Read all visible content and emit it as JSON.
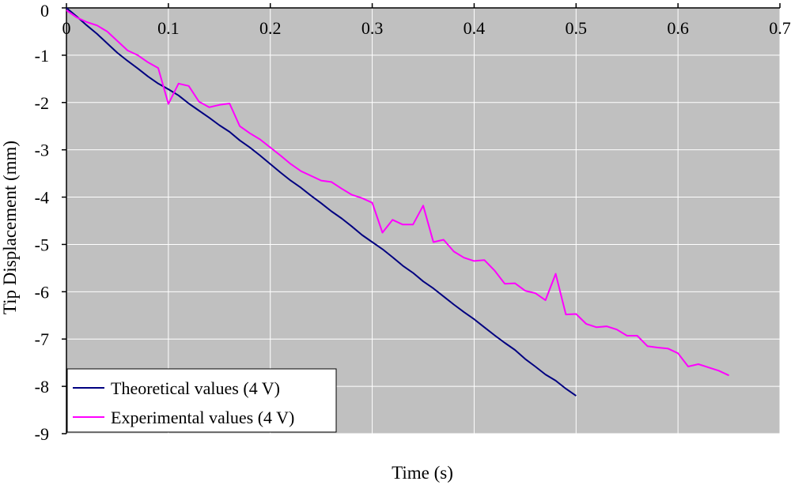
{
  "chart_data": {
    "type": "line",
    "title": "",
    "xlabel": "Time (s)",
    "ylabel": "Tip Displacement (mm)",
    "xlim": [
      0,
      0.7
    ],
    "ylim": [
      -9,
      0
    ],
    "x_ticks": [
      0,
      0.1,
      0.2,
      0.3,
      0.4,
      0.5,
      0.6,
      0.7
    ],
    "x_tick_labels": [
      "0",
      "0.1",
      "0.2",
      "0.3",
      "0.4",
      "0.5",
      "0.6",
      "0.7"
    ],
    "y_ticks": [
      0,
      -1,
      -2,
      -3,
      -4,
      -5,
      -6,
      -7,
      -8,
      -9
    ],
    "y_tick_labels": [
      "0",
      "-1",
      "-2",
      "-3",
      "-4",
      "-5",
      "-6",
      "-7",
      "-8",
      "-9"
    ],
    "grid": true,
    "legend_position": "bottom-left",
    "colors": {
      "plot_background": "#c0c0c0",
      "grid": "#ffffff",
      "axis": "#000000"
    },
    "series": [
      {
        "name": "Theoretical values (4 V)",
        "color": "#000080",
        "x": [
          0,
          0.01,
          0.02,
          0.03,
          0.04,
          0.05,
          0.06,
          0.07,
          0.08,
          0.09,
          0.1,
          0.11,
          0.12,
          0.13,
          0.14,
          0.15,
          0.16,
          0.17,
          0.18,
          0.19,
          0.2,
          0.21,
          0.22,
          0.23,
          0.24,
          0.25,
          0.26,
          0.27,
          0.28,
          0.29,
          0.3,
          0.31,
          0.32,
          0.33,
          0.34,
          0.35,
          0.36,
          0.37,
          0.38,
          0.39,
          0.4,
          0.41,
          0.42,
          0.43,
          0.44,
          0.45,
          0.46,
          0.47,
          0.48,
          0.49,
          0.5
        ],
        "y": [
          0,
          -0.18,
          -0.37,
          -0.55,
          -0.75,
          -0.95,
          -1.12,
          -1.28,
          -1.45,
          -1.6,
          -1.72,
          -1.85,
          -2.02,
          -2.17,
          -2.32,
          -2.48,
          -2.62,
          -2.8,
          -2.95,
          -3.12,
          -3.3,
          -3.48,
          -3.65,
          -3.8,
          -3.97,
          -4.13,
          -4.3,
          -4.45,
          -4.62,
          -4.8,
          -4.95,
          -5.1,
          -5.27,
          -5.45,
          -5.6,
          -5.78,
          -5.93,
          -6.1,
          -6.27,
          -6.43,
          -6.58,
          -6.75,
          -6.92,
          -7.08,
          -7.23,
          -7.42,
          -7.58,
          -7.75,
          -7.88,
          -8.05,
          -8.2
        ]
      },
      {
        "name": "Experimental values (4 V)",
        "color": "#ff00ff",
        "x": [
          0,
          0.01,
          0.02,
          0.03,
          0.04,
          0.05,
          0.06,
          0.07,
          0.08,
          0.09,
          0.1,
          0.11,
          0.12,
          0.13,
          0.14,
          0.15,
          0.16,
          0.17,
          0.18,
          0.19,
          0.2,
          0.21,
          0.22,
          0.23,
          0.24,
          0.25,
          0.26,
          0.27,
          0.28,
          0.29,
          0.3,
          0.31,
          0.32,
          0.33,
          0.34,
          0.35,
          0.36,
          0.37,
          0.38,
          0.39,
          0.4,
          0.41,
          0.42,
          0.43,
          0.44,
          0.45,
          0.46,
          0.47,
          0.48,
          0.49,
          0.5,
          0.51,
          0.52,
          0.53,
          0.54,
          0.55,
          0.56,
          0.57,
          0.58,
          0.59,
          0.6,
          0.61,
          0.62,
          0.63,
          0.64,
          0.65
        ],
        "y": [
          -0.05,
          -0.2,
          -0.3,
          -0.37,
          -0.5,
          -0.7,
          -0.9,
          -1.0,
          -1.15,
          -1.27,
          -2.03,
          -1.6,
          -1.65,
          -1.98,
          -2.1,
          -2.05,
          -2.02,
          -2.5,
          -2.65,
          -2.78,
          -2.95,
          -3.12,
          -3.3,
          -3.45,
          -3.55,
          -3.65,
          -3.68,
          -3.82,
          -3.95,
          -4.02,
          -4.12,
          -4.75,
          -4.48,
          -4.58,
          -4.58,
          -4.18,
          -4.95,
          -4.9,
          -5.15,
          -5.28,
          -5.35,
          -5.33,
          -5.55,
          -5.83,
          -5.82,
          -5.98,
          -6.03,
          -6.18,
          -5.62,
          -6.48,
          -6.47,
          -6.68,
          -6.75,
          -6.73,
          -6.8,
          -6.93,
          -6.93,
          -7.15,
          -7.18,
          -7.2,
          -7.3,
          -7.58,
          -7.53,
          -7.6,
          -7.67,
          -7.77
        ]
      }
    ]
  }
}
